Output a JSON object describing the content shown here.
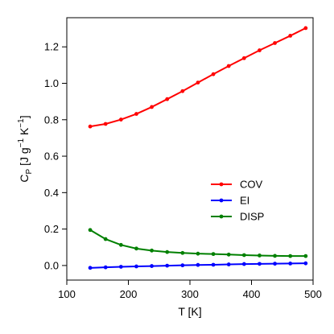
{
  "chart_data": {
    "type": "line",
    "xlabel": "T [K]",
    "ylabel_main": "C",
    "ylabel_sub": "P",
    "ylabel_unit": " [J g",
    "ylabel_exp1": "−1",
    "ylabel_unit2": " K",
    "ylabel_exp2": "−1",
    "ylabel_close": "]",
    "xlim": [
      100,
      500
    ],
    "ylim": [
      -0.08,
      1.36
    ],
    "xticks": [
      100,
      200,
      300,
      400,
      500
    ],
    "yticks": [
      0.0,
      0.2,
      0.4,
      0.6,
      0.8,
      1.0,
      1.2
    ],
    "xtick_labels": [
      "100",
      "200",
      "300",
      "400",
      "500"
    ],
    "ytick_labels": [
      "0.0",
      "0.2",
      "0.4",
      "0.6",
      "0.8",
      "1.0",
      "1.2"
    ],
    "grid": false,
    "legend_position": "center-right",
    "x": [
      138,
      163,
      188,
      213,
      238,
      263,
      288,
      313,
      338,
      363,
      388,
      413,
      438,
      463,
      488
    ],
    "series": [
      {
        "name": "COV",
        "color": "#ff0000",
        "values": [
          0.763,
          0.777,
          0.801,
          0.832,
          0.87,
          0.913,
          0.957,
          1.004,
          1.05,
          1.095,
          1.138,
          1.181,
          1.221,
          1.261,
          1.303
        ]
      },
      {
        "name": "EI",
        "color": "#0000ff",
        "values": [
          -0.013,
          -0.01,
          -0.007,
          -0.005,
          -0.003,
          -0.001,
          0.001,
          0.003,
          0.004,
          0.006,
          0.008,
          0.009,
          0.01,
          0.011,
          0.012
        ]
      },
      {
        "name": "DISP",
        "color": "#008000",
        "values": [
          0.195,
          0.145,
          0.113,
          0.093,
          0.082,
          0.074,
          0.069,
          0.065,
          0.063,
          0.06,
          0.057,
          0.055,
          0.053,
          0.052,
          0.052
        ]
      }
    ]
  }
}
